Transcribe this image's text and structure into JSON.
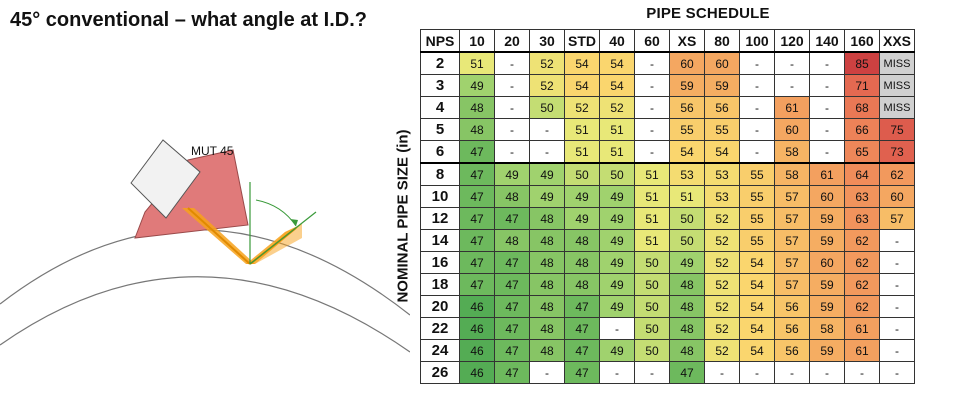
{
  "title": "45° conventional – what angle at I.D.?",
  "probe_label": "MUT 45",
  "schedule_title": "PIPE SCHEDULE",
  "axis_label": "NOMINAL PIPE SIZE (in)",
  "nps_header": "NPS",
  "columns": [
    "10",
    "20",
    "30",
    "STD",
    "40",
    "60",
    "XS",
    "80",
    "100",
    "120",
    "140",
    "160",
    "XXS"
  ],
  "rows": [
    {
      "nps": "2",
      "cells": [
        "51",
        "-",
        "52",
        "54",
        "54",
        "-",
        "60",
        "60",
        "-",
        "-",
        "-",
        "85",
        "MISS"
      ]
    },
    {
      "nps": "3",
      "cells": [
        "49",
        "-",
        "52",
        "54",
        "54",
        "-",
        "59",
        "59",
        "-",
        "-",
        "-",
        "71",
        "MISS"
      ]
    },
    {
      "nps": "4",
      "cells": [
        "48",
        "-",
        "50",
        "52",
        "52",
        "-",
        "56",
        "56",
        "-",
        "61",
        "-",
        "68",
        "MISS"
      ]
    },
    {
      "nps": "5",
      "cells": [
        "48",
        "-",
        "-",
        "51",
        "51",
        "-",
        "55",
        "55",
        "-",
        "60",
        "-",
        "66",
        "75"
      ]
    },
    {
      "nps": "6",
      "cells": [
        "47",
        "-",
        "-",
        "51",
        "51",
        "-",
        "54",
        "54",
        "-",
        "58",
        "-",
        "65",
        "73"
      ]
    },
    {
      "nps": "8",
      "cells": [
        "47",
        "49",
        "49",
        "50",
        "50",
        "51",
        "53",
        "53",
        "55",
        "58",
        "61",
        "64",
        "62"
      ]
    },
    {
      "nps": "10",
      "cells": [
        "47",
        "48",
        "49",
        "49",
        "49",
        "51",
        "51",
        "53",
        "55",
        "57",
        "60",
        "63",
        "60"
      ]
    },
    {
      "nps": "12",
      "cells": [
        "47",
        "47",
        "48",
        "49",
        "49",
        "51",
        "50",
        "52",
        "55",
        "57",
        "59",
        "63",
        "57"
      ]
    },
    {
      "nps": "14",
      "cells": [
        "47",
        "48",
        "48",
        "48",
        "49",
        "51",
        "50",
        "52",
        "55",
        "57",
        "59",
        "62",
        "-"
      ]
    },
    {
      "nps": "16",
      "cells": [
        "47",
        "47",
        "48",
        "48",
        "49",
        "50",
        "49",
        "52",
        "54",
        "57",
        "60",
        "62",
        "-"
      ]
    },
    {
      "nps": "18",
      "cells": [
        "47",
        "47",
        "48",
        "48",
        "49",
        "50",
        "48",
        "52",
        "54",
        "57",
        "59",
        "62",
        "-"
      ]
    },
    {
      "nps": "20",
      "cells": [
        "46",
        "47",
        "48",
        "47",
        "49",
        "50",
        "48",
        "52",
        "54",
        "56",
        "59",
        "62",
        "-"
      ]
    },
    {
      "nps": "22",
      "cells": [
        "46",
        "47",
        "48",
        "47",
        "-",
        "50",
        "48",
        "52",
        "54",
        "56",
        "58",
        "61",
        "-"
      ]
    },
    {
      "nps": "24",
      "cells": [
        "46",
        "47",
        "48",
        "47",
        "49",
        "50",
        "48",
        "52",
        "54",
        "56",
        "59",
        "61",
        "-"
      ]
    },
    {
      "nps": "26",
      "cells": [
        "46",
        "47",
        "-",
        "47",
        "-",
        "-",
        "47",
        "-",
        "-",
        "-",
        "-",
        "-",
        "-"
      ]
    }
  ],
  "colors": {
    "probe_wedge": "#e07a7a",
    "probe_crystal": "#f2f2f2",
    "beam": "#f7a21b",
    "normal_line": "#3a9a3a",
    "miss_cell": "#d0d0d0",
    "blank_cell": "#ffffff"
  }
}
